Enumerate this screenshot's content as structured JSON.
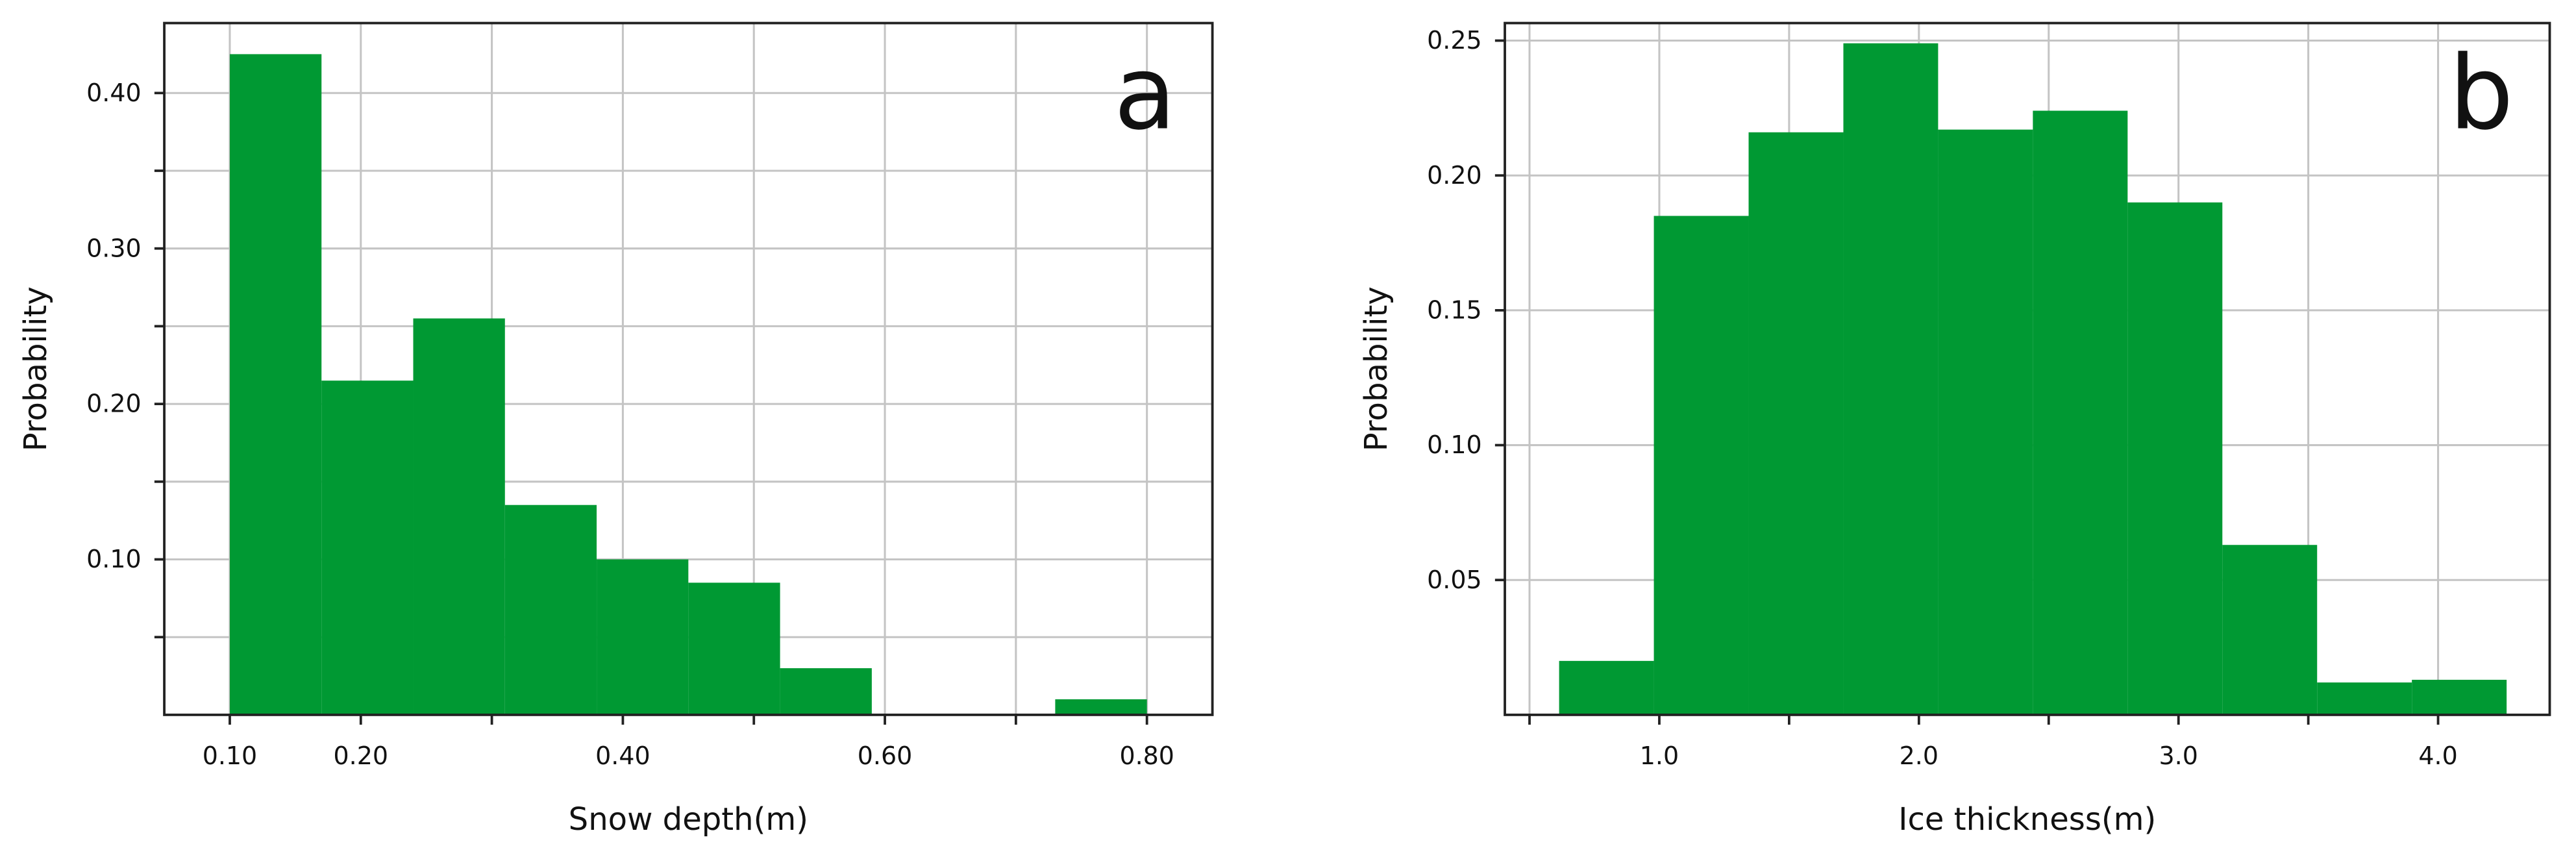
{
  "chart_data": [
    {
      "type": "histogram",
      "annotation": "a",
      "xlabel": "Snow depth(m)",
      "ylabel": "Probability",
      "color": "#009933",
      "grid": true,
      "bins": [
        0.1,
        0.17,
        0.24,
        0.31,
        0.38,
        0.45,
        0.52,
        0.59,
        0.66,
        0.73,
        0.8
      ],
      "values": [
        0.425,
        0.215,
        0.255,
        0.135,
        0.1,
        0.085,
        0.03,
        0,
        0,
        0.01
      ],
      "xlim": [
        0.05,
        0.85
      ],
      "xticks": [
        {
          "value": 0.1,
          "label": "0.10"
        },
        {
          "value": 0.2,
          "label": "0.20"
        },
        {
          "value": 0.4,
          "label": "0.40"
        },
        {
          "value": 0.6,
          "label": "0.60"
        },
        {
          "value": 0.8,
          "label": "0.80"
        }
      ],
      "xminor": [
        0.3,
        0.5,
        0.7
      ],
      "ylim": [
        0,
        0.445
      ],
      "yticks": [
        {
          "value": 0.1,
          "label": "0.10"
        },
        {
          "value": 0.2,
          "label": "0.20"
        },
        {
          "value": 0.3,
          "label": "0.30"
        },
        {
          "value": 0.4,
          "label": "0.40"
        }
      ],
      "yminor": [
        0.05,
        0.15,
        0.25,
        0.35
      ]
    },
    {
      "type": "histogram",
      "annotation": "b",
      "xlabel": "Ice thickness(m)",
      "ylabel": "Probability",
      "color": "#009933",
      "grid": true,
      "bins": [
        0.614,
        0.979,
        1.344,
        1.709,
        2.074,
        2.439,
        2.804,
        3.169,
        3.534,
        3.899,
        4.264
      ],
      "values": [
        0.02,
        0.185,
        0.216,
        0.249,
        0.217,
        0.224,
        0.19,
        0.063,
        0.012,
        0.013
      ],
      "xlim": [
        0.405,
        4.43
      ],
      "xticks": [
        {
          "value": 1,
          "label": "1.0"
        },
        {
          "value": 2,
          "label": "2.0"
        },
        {
          "value": 3,
          "label": "3.0"
        },
        {
          "value": 4,
          "label": "4.0"
        }
      ],
      "xminor": [
        0.5,
        1.5,
        2.5,
        3.5
      ],
      "ylim": [
        0,
        0.2565
      ],
      "yticks": [
        0.05,
        {
          "value": 0.1,
          "label": "0.10"
        },
        0.15,
        {
          "value": 0.2,
          "label": "0.20"
        },
        0.25
      ],
      "yminor": []
    }
  ]
}
